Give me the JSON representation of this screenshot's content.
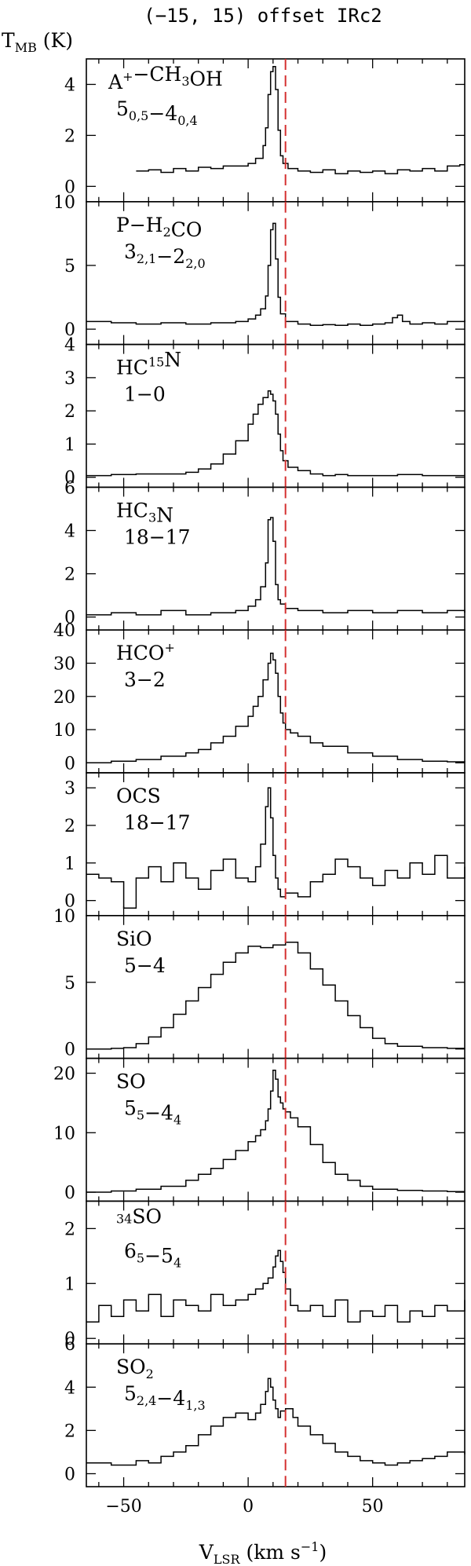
{
  "figure": {
    "title": "(−15, 15) offset IRc2",
    "ylabel": {
      "main": "T",
      "sub": "MB",
      "unit": " (K)"
    },
    "xlabel": {
      "main": "V",
      "sub": "LSR",
      "unit": " (km s",
      "sup": "−1",
      "close": ")"
    },
    "line_color": "#000000",
    "marker_color": "#d43030"
  },
  "chart_data": [
    {
      "type": "line",
      "molecule": [
        [
          "A",
          ""
        ],
        [
          "+",
          "sup"
        ],
        [
          "−CH",
          ""
        ],
        [
          "3",
          "sub"
        ],
        [
          "OH",
          ""
        ]
      ],
      "transition": [
        [
          "5",
          ""
        ],
        [
          "0,5",
          "sub"
        ],
        [
          "−4",
          ""
        ],
        [
          "0,4",
          "sub"
        ]
      ],
      "xlim": [
        -65,
        87
      ],
      "ylim": [
        -0.6,
        5.0
      ],
      "x": [
        -45,
        -40,
        -35,
        -30,
        -25,
        -20,
        -15,
        -10,
        -5,
        0,
        3,
        6,
        7,
        8,
        9,
        10,
        11,
        12,
        13,
        14,
        16,
        20,
        25,
        30,
        35,
        40,
        45,
        50,
        55,
        60,
        65,
        70,
        75,
        80,
        85
      ],
      "y": [
        0.6,
        0.65,
        0.55,
        0.7,
        0.6,
        0.75,
        0.7,
        0.8,
        0.8,
        0.9,
        1.1,
        1.6,
        2.3,
        3.6,
        4.5,
        4.7,
        3.8,
        2.2,
        1.2,
        0.9,
        0.7,
        0.6,
        0.55,
        0.65,
        0.5,
        0.6,
        0.55,
        0.6,
        0.5,
        0.65,
        0.6,
        0.7,
        0.6,
        0.8,
        0.85
      ],
      "yticks": [
        0,
        2,
        4
      ],
      "ytick_labels": [
        "0",
        "2",
        "4"
      ],
      "marker_x": 15
    },
    {
      "type": "line",
      "molecule": [
        [
          "P−H",
          ""
        ],
        [
          "2",
          "sub"
        ],
        [
          "CO",
          ""
        ]
      ],
      "transition": [
        [
          "3",
          ""
        ],
        [
          "2,1",
          "sub"
        ],
        [
          "−2",
          ""
        ],
        [
          "2,0",
          "sub"
        ]
      ],
      "xlim": [
        -65,
        87
      ],
      "ylim": [
        -1.2,
        10.0
      ],
      "x": [
        -65,
        -55,
        -45,
        -35,
        -25,
        -15,
        -5,
        0,
        3,
        5,
        7,
        8,
        9,
        10,
        11,
        12,
        13,
        15,
        20,
        25,
        30,
        35,
        40,
        45,
        50,
        55,
        58,
        60,
        62,
        65,
        70,
        75,
        80,
        87
      ],
      "y": [
        0.6,
        0.5,
        0.4,
        0.5,
        0.4,
        0.5,
        0.6,
        0.8,
        1.1,
        1.6,
        2.6,
        5.0,
        7.8,
        8.3,
        5.5,
        2.5,
        1.2,
        0.6,
        0.4,
        0.3,
        0.35,
        0.3,
        0.4,
        0.3,
        0.4,
        0.5,
        0.9,
        1.1,
        0.6,
        0.4,
        0.5,
        0.4,
        0.6,
        0.7
      ],
      "yticks": [
        0,
        5,
        10
      ],
      "ytick_labels": [
        "0",
        "5",
        "10"
      ],
      "marker_x": 15
    },
    {
      "type": "line",
      "molecule": [
        [
          "HC",
          ""
        ],
        [
          "15",
          "sup"
        ],
        [
          "N",
          ""
        ]
      ],
      "transition": [
        [
          "1−0",
          ""
        ]
      ],
      "xlim": [
        -65,
        87
      ],
      "ylim": [
        -0.3,
        4.0
      ],
      "x": [
        -65,
        -55,
        -45,
        -35,
        -25,
        -20,
        -15,
        -10,
        -5,
        0,
        2,
        4,
        6,
        8,
        9,
        10,
        11,
        12,
        13,
        14,
        16,
        20,
        25,
        30,
        35,
        40,
        50,
        60,
        70,
        80,
        87
      ],
      "y": [
        0.05,
        0.08,
        0.1,
        0.1,
        0.15,
        0.25,
        0.4,
        0.7,
        1.1,
        1.6,
        1.9,
        2.2,
        2.4,
        2.6,
        2.5,
        2.3,
        1.9,
        1.3,
        0.8,
        0.5,
        0.3,
        0.2,
        0.1,
        0.05,
        0.08,
        0.05,
        0.05,
        0.08,
        0.05,
        0.05,
        0.05
      ],
      "yticks": [
        0,
        1,
        2,
        3,
        4
      ],
      "ytick_labels": [
        "0",
        "1",
        "2",
        "3",
        "4"
      ],
      "marker_x": 15
    },
    {
      "type": "line",
      "molecule": [
        [
          "HC",
          ""
        ],
        [
          "3",
          "sub"
        ],
        [
          "N",
          ""
        ]
      ],
      "transition": [
        [
          "18−17",
          ""
        ]
      ],
      "xlim": [
        -65,
        87
      ],
      "ylim": [
        -0.6,
        6.0
      ],
      "x": [
        -65,
        -55,
        -45,
        -35,
        -25,
        -15,
        -5,
        0,
        3,
        5,
        7,
        8,
        9,
        10,
        11,
        12,
        13,
        15,
        20,
        30,
        40,
        50,
        60,
        70,
        80,
        87
      ],
      "y": [
        0.1,
        0.2,
        0.1,
        0.3,
        0.1,
        0.2,
        0.3,
        0.5,
        0.8,
        1.4,
        2.5,
        4.5,
        4.6,
        3.5,
        1.5,
        0.8,
        0.6,
        0.4,
        0.3,
        0.2,
        0.3,
        0.2,
        0.3,
        0.2,
        0.3,
        0.2
      ],
      "yticks": [
        0,
        2,
        4,
        6
      ],
      "ytick_labels": [
        "0",
        "2",
        "4",
        "6"
      ],
      "marker_x": 15
    },
    {
      "type": "line",
      "molecule": [
        [
          "HCO",
          ""
        ],
        [
          "+",
          "sup"
        ]
      ],
      "transition": [
        [
          "3−2",
          ""
        ]
      ],
      "xlim": [
        -65,
        87
      ],
      "ylim": [
        -3.0,
        40.0
      ],
      "x": [
        -65,
        -55,
        -45,
        -35,
        -25,
        -20,
        -15,
        -10,
        -5,
        0,
        2,
        4,
        6,
        8,
        9,
        10,
        11,
        12,
        13,
        14,
        15,
        17,
        20,
        25,
        30,
        40,
        50,
        60,
        70,
        80,
        87
      ],
      "y": [
        0,
        0.5,
        1,
        2,
        3,
        4,
        6,
        8,
        11,
        14,
        17,
        20,
        25,
        30,
        33,
        31,
        27,
        20,
        15,
        12,
        10,
        9,
        8,
        6,
        5,
        3,
        2,
        1,
        0.5,
        0.3,
        0.2
      ],
      "yticks": [
        0,
        10,
        20,
        30,
        40
      ],
      "ytick_labels": [
        "0",
        "10",
        "20",
        "30",
        "40"
      ],
      "marker_x": 15
    },
    {
      "type": "line",
      "molecule": [
        [
          "OCS",
          ""
        ]
      ],
      "transition": [
        [
          "18−17",
          ""
        ]
      ],
      "xlim": [
        -65,
        87
      ],
      "ylim": [
        -0.4,
        3.4
      ],
      "x": [
        -65,
        -60,
        -55,
        -50,
        -45,
        -40,
        -35,
        -30,
        -25,
        -20,
        -15,
        -10,
        -5,
        0,
        3,
        5,
        7,
        8,
        9,
        10,
        11,
        12,
        13,
        15,
        20,
        25,
        30,
        35,
        40,
        45,
        50,
        55,
        60,
        65,
        70,
        75,
        80,
        87
      ],
      "y": [
        0.7,
        0.6,
        0.5,
        -0.2,
        0.6,
        0.9,
        0.5,
        1.0,
        0.6,
        0.3,
        0.8,
        1.1,
        0.6,
        0.5,
        0.9,
        1.5,
        2.5,
        3.0,
        2.2,
        1.2,
        0.6,
        0.3,
        0.1,
        0.2,
        0.1,
        0.5,
        0.7,
        1.1,
        0.9,
        0.6,
        0.4,
        0.8,
        0.6,
        1.0,
        0.7,
        1.2,
        0.6,
        0.9
      ],
      "yticks": [
        0,
        1,
        2,
        3
      ],
      "ytick_labels": [
        "0",
        "1",
        "2",
        "3"
      ],
      "marker_x": 15
    },
    {
      "type": "line",
      "molecule": [
        [
          "SiO",
          ""
        ]
      ],
      "transition": [
        [
          "5−4",
          ""
        ]
      ],
      "xlim": [
        -65,
        87
      ],
      "ylim": [
        -0.7,
        10.0
      ],
      "x": [
        -65,
        -55,
        -50,
        -45,
        -40,
        -35,
        -30,
        -25,
        -20,
        -15,
        -10,
        -5,
        0,
        5,
        10,
        15,
        20,
        25,
        30,
        35,
        40,
        45,
        50,
        55,
        60,
        70,
        80,
        87
      ],
      "y": [
        0,
        0.05,
        0.1,
        0.4,
        0.9,
        1.6,
        2.6,
        3.6,
        4.6,
        5.6,
        6.5,
        7.2,
        7.7,
        7.6,
        7.8,
        8.0,
        7.2,
        6.0,
        4.8,
        3.6,
        2.5,
        1.6,
        0.8,
        0.4,
        0.2,
        0.1,
        0.05,
        0.05
      ],
      "yticks": [
        0,
        5,
        10
      ],
      "ytick_labels": [
        "0",
        "5",
        "10"
      ],
      "marker_x": 15
    },
    {
      "type": "line",
      "molecule": [
        [
          "SO",
          ""
        ]
      ],
      "transition": [
        [
          "5",
          ""
        ],
        [
          "5",
          "sub"
        ],
        [
          "−4",
          ""
        ],
        [
          "4",
          "sub"
        ]
      ],
      "xlim": [
        -65,
        87
      ],
      "ylim": [
        -1.5,
        22.5
      ],
      "x": [
        -65,
        -55,
        -45,
        -35,
        -25,
        -20,
        -15,
        -10,
        -5,
        0,
        3,
        5,
        7,
        8,
        9,
        10,
        11,
        12,
        13,
        14,
        15,
        17,
        20,
        25,
        30,
        35,
        40,
        45,
        50,
        60,
        70,
        80,
        87
      ],
      "y": [
        0,
        0.2,
        0.5,
        1.0,
        2.0,
        3.0,
        4.0,
        5.5,
        7.0,
        8.5,
        9.5,
        10.5,
        12,
        14,
        17,
        20.5,
        19,
        16,
        15,
        14,
        13.5,
        12.5,
        11,
        8,
        5,
        3,
        2,
        1,
        0.5,
        0.3,
        0.2,
        0.1,
        0.1
      ],
      "yticks": [
        0,
        10,
        20
      ],
      "ytick_labels": [
        "0",
        "10",
        "20"
      ],
      "marker_x": 15
    },
    {
      "type": "line",
      "molecule": [
        [
          "",
          ""
        ],
        [
          "34",
          "sup"
        ],
        [
          "SO",
          ""
        ]
      ],
      "transition": [
        [
          "6",
          ""
        ],
        [
          "5",
          "sub"
        ],
        [
          "−5",
          ""
        ],
        [
          "4",
          "sub"
        ]
      ],
      "xlim": [
        -65,
        87
      ],
      "ylim": [
        -0.1,
        2.5
      ],
      "x": [
        -65,
        -60,
        -55,
        -50,
        -45,
        -40,
        -35,
        -30,
        -25,
        -20,
        -15,
        -10,
        -5,
        0,
        3,
        6,
        8,
        10,
        11,
        12,
        13,
        14,
        15,
        17,
        20,
        25,
        30,
        35,
        40,
        45,
        50,
        55,
        60,
        65,
        70,
        75,
        80,
        87
      ],
      "y": [
        0.3,
        0.6,
        0.4,
        0.7,
        0.5,
        0.8,
        0.4,
        0.7,
        0.6,
        0.5,
        0.8,
        0.6,
        0.7,
        0.8,
        0.9,
        1.0,
        1.1,
        1.3,
        1.5,
        1.6,
        1.4,
        1.2,
        0.9,
        0.6,
        0.5,
        0.6,
        0.4,
        0.7,
        0.3,
        0.5,
        0.4,
        0.6,
        0.3,
        0.5,
        0.4,
        0.6,
        0.5,
        0.7
      ],
      "yticks": [
        0,
        1,
        2
      ],
      "ytick_labels": [
        "0",
        "1",
        "2"
      ],
      "marker_x": 15
    },
    {
      "type": "line",
      "molecule": [
        [
          "SO",
          ""
        ],
        [
          "2",
          "sub"
        ]
      ],
      "transition": [
        [
          "5",
          ""
        ],
        [
          "2,4",
          "sub"
        ],
        [
          "−4",
          ""
        ],
        [
          "1,3",
          "sub"
        ]
      ],
      "xlim": [
        -65,
        87
      ],
      "ylim": [
        -0.6,
        6.0
      ],
      "x": [
        -65,
        -55,
        -45,
        -40,
        -35,
        -30,
        -25,
        -20,
        -15,
        -10,
        -5,
        0,
        3,
        5,
        7,
        8,
        9,
        10,
        11,
        12,
        13,
        15,
        18,
        20,
        25,
        30,
        35,
        40,
        45,
        50,
        55,
        60,
        65,
        70,
        75,
        80,
        87
      ],
      "y": [
        0.5,
        0.4,
        0.6,
        0.5,
        0.8,
        1.0,
        1.3,
        1.8,
        2.2,
        2.6,
        2.8,
        2.5,
        2.8,
        3.2,
        3.8,
        4.4,
        4.0,
        3.4,
        3.0,
        2.6,
        2.9,
        3.0,
        2.6,
        2.2,
        1.8,
        1.4,
        1.0,
        0.8,
        0.6,
        0.5,
        0.4,
        0.5,
        0.6,
        0.7,
        0.8,
        1.0,
        0.9
      ],
      "yticks": [
        0,
        2,
        4,
        6
      ],
      "ytick_labels": [
        "0",
        "2",
        "4",
        "6"
      ],
      "marker_x": 15
    }
  ],
  "x_axis": {
    "ticks_major": [
      -50,
      0,
      50
    ],
    "tick_labels": [
      "−50",
      "0",
      "50"
    ],
    "minor_step": 10
  }
}
